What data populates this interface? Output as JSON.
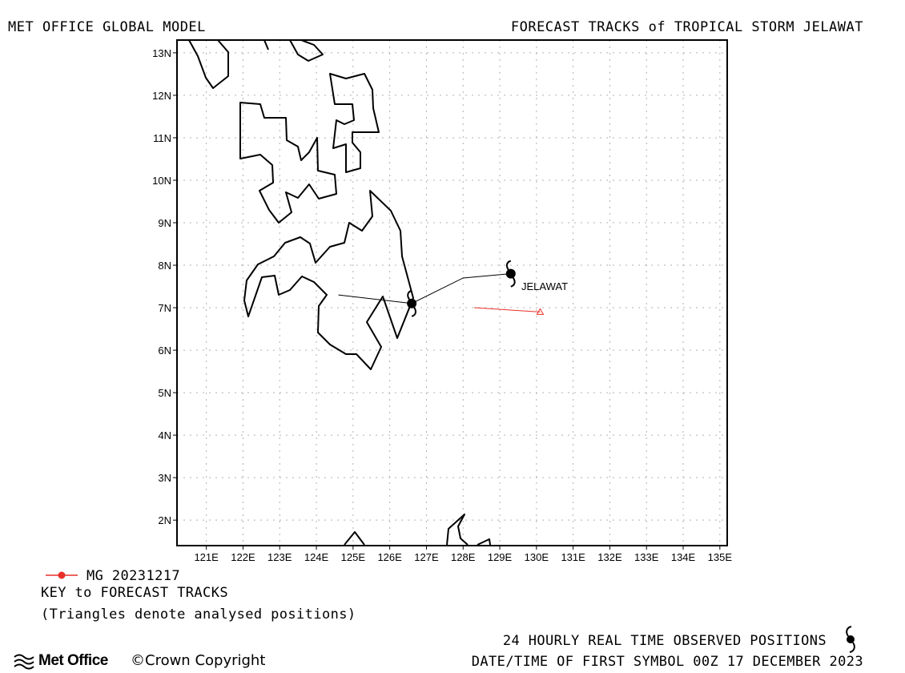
{
  "header": {
    "left": "MET OFFICE GLOBAL MODEL",
    "right": "FORECAST TRACKS of TROPICAL STORM JELAWAT"
  },
  "map": {
    "lon_range": [
      120.2,
      135.2
    ],
    "lat_range": [
      1.4,
      13.3
    ],
    "lat_labels": [
      "13N",
      "12N",
      "11N",
      "10N",
      "9N",
      "8N",
      "7N",
      "6N",
      "5N",
      "4N",
      "3N",
      "2N"
    ],
    "lon_labels": [
      "121E",
      "122E",
      "123E",
      "124E",
      "125E",
      "126E",
      "127E",
      "128E",
      "129E",
      "130E",
      "131E",
      "132E",
      "133E",
      "134E",
      "135E"
    ],
    "grid": true,
    "coast_color": "#000000",
    "grid_color": "#b0b0b0",
    "storm_label": "JELAWAT",
    "observed_track": [
      {
        "lon": 124.6,
        "lat": 7.3
      },
      {
        "lon": 126.6,
        "lat": 7.1
      },
      {
        "lon": 128.0,
        "lat": 7.7
      },
      {
        "lon": 129.3,
        "lat": 7.8
      }
    ],
    "observed_symbols": [
      {
        "lon": 129.3,
        "lat": 7.8
      },
      {
        "lon": 126.6,
        "lat": 7.1
      }
    ],
    "forecast_track": {
      "color": "#e8302a",
      "points": [
        {
          "lon": 128.3,
          "lat": 7.0
        },
        {
          "lon": 130.1,
          "lat": 6.9
        }
      ],
      "analysed_triangle": {
        "lon": 130.1,
        "lat": 6.9
      }
    }
  },
  "legend": {
    "entry_label": "MG 20231217",
    "entry_color": "#e8302a",
    "key_title": "KEY to FORECAST TRACKS",
    "key_note": "(Triangles denote analysed positions)"
  },
  "footer": {
    "observed_positions": "24 HOURLY REAL TIME OBSERVED POSITIONS",
    "first_symbol": "DATE/TIME OF FIRST SYMBOL 00Z 17 DECEMBER 2023",
    "logo_text": "Met Office",
    "copyright": "©Crown Copyright"
  }
}
